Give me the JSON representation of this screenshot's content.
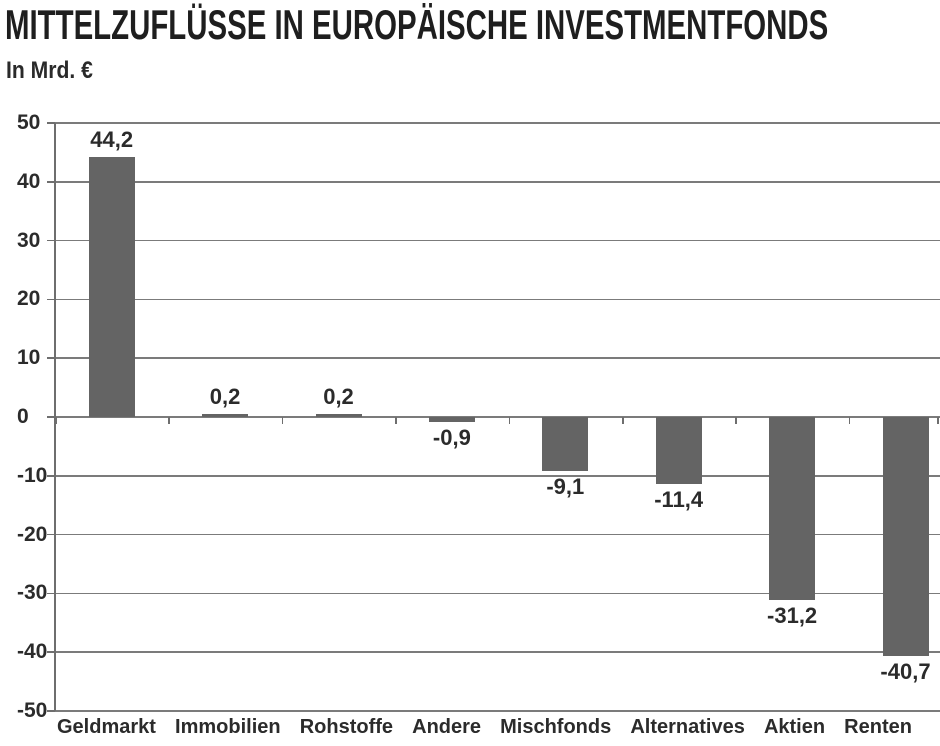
{
  "header": {
    "title": "MITTELZUFLÜSSE IN EUROPÄISCHE INVESTMENTFONDS",
    "subtitle": "In Mrd. €"
  },
  "chart_data": {
    "type": "bar",
    "title": "MITTELZUFLÜSSE IN EUROPÄISCHE INVESTMENTFONDS",
    "xlabel": "",
    "ylabel": "In Mrd. €",
    "categories": [
      "Geldmarkt",
      "Immobilien",
      "Rohstoffe",
      "Andere",
      "Mischfonds",
      "Alternatives",
      "Aktien",
      "Renten"
    ],
    "values": [
      44.2,
      0.2,
      0.2,
      -0.9,
      -9.1,
      -11.4,
      -31.2,
      -40.7
    ],
    "value_labels": [
      "44,2",
      "0,2",
      "0,2",
      "-0,9",
      "-9,1",
      "-11,4",
      "-31,2",
      "-40,7"
    ],
    "ylim": [
      -50,
      50
    ],
    "ytick_step": 10,
    "ytick_labels": [
      "50",
      "40",
      "30",
      "20",
      "10",
      "0",
      "-10",
      "-20",
      "-30",
      "-40",
      "-50"
    ],
    "grid": true,
    "legend": false,
    "bar_color": "#646464",
    "grid_color": "#7b7b7b",
    "axis_color": "#6e6e6e",
    "text_color": "#2b2b2b"
  }
}
